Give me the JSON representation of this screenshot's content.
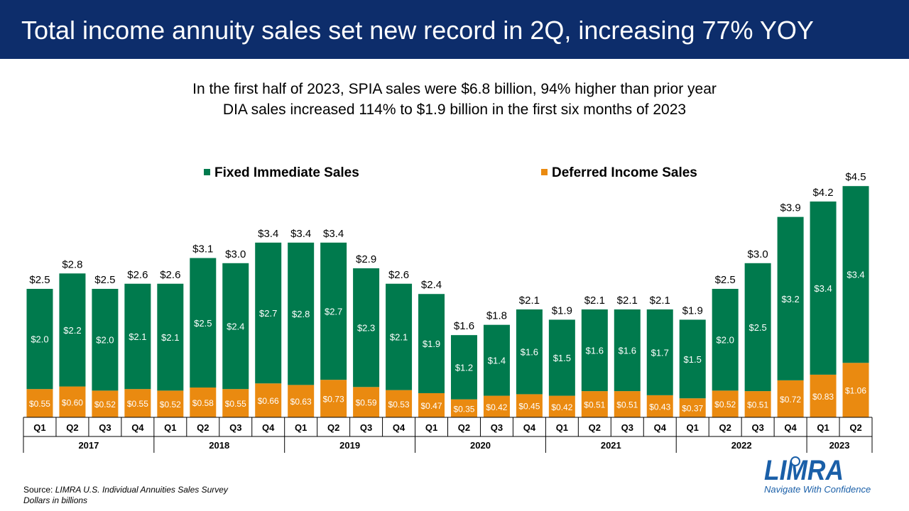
{
  "header": {
    "title": "Total income annuity sales set new record in 2Q, increasing 77% YOY",
    "subtitle_line1": "In the first half of 2023, SPIA sales were $6.8 billion, 94% higher than prior year",
    "subtitle_line2": "DIA sales increased 114% to $1.9 billion in the first six months of 2023"
  },
  "footer": {
    "source_prefix": "Source: ",
    "source_name": "LIMRA U.S. Individual Annuities Sales Survey",
    "units_note": "Dollars in billions"
  },
  "logo": {
    "wordmark": "LIMRA",
    "tagline": "Navigate With Confidence"
  },
  "colors": {
    "title_bar": "#0d2d6b",
    "fixed_immediate": "#007a4d",
    "deferred_income": "#ea8a10",
    "logo_blue": "#1a5fa8"
  },
  "chart_data": {
    "type": "bar",
    "stacked": true,
    "legend_position": "top",
    "ylim": [
      0,
      5
    ],
    "categories": [
      "Q1",
      "Q2",
      "Q3",
      "Q4",
      "Q1",
      "Q2",
      "Q3",
      "Q4",
      "Q1",
      "Q2",
      "Q3",
      "Q4",
      "Q1",
      "Q2",
      "Q3",
      "Q4",
      "Q1",
      "Q2",
      "Q3",
      "Q4",
      "Q1",
      "Q2",
      "Q3",
      "Q4",
      "Q1",
      "Q2"
    ],
    "groups": [
      {
        "label": "2017",
        "count": 4
      },
      {
        "label": "2018",
        "count": 4
      },
      {
        "label": "2019",
        "count": 4
      },
      {
        "label": "2020",
        "count": 4
      },
      {
        "label": "2021",
        "count": 4
      },
      {
        "label": "2022",
        "count": 4
      },
      {
        "label": "2023",
        "count": 2
      }
    ],
    "series": [
      {
        "name": "Deferred Income Sales",
        "values": [
          0.55,
          0.6,
          0.52,
          0.55,
          0.52,
          0.58,
          0.55,
          0.66,
          0.63,
          0.73,
          0.59,
          0.53,
          0.47,
          0.35,
          0.42,
          0.45,
          0.42,
          0.51,
          0.51,
          0.43,
          0.37,
          0.52,
          0.51,
          0.72,
          0.83,
          1.06
        ],
        "labels": [
          "$0.55",
          "$0.60",
          "$0.52",
          "$0.55",
          "$0.52",
          "$0.58",
          "$0.55",
          "$0.66",
          "$0.63",
          "$0.73",
          "$0.59",
          "$0.53",
          "$0.47",
          "$0.35",
          "$0.42",
          "$0.45",
          "$0.42",
          "$0.51",
          "$0.51",
          "$0.43",
          "$0.37",
          "$0.52",
          "$0.51",
          "$0.72",
          "$0.83",
          "$1.06"
        ]
      },
      {
        "name": "Fixed Immediate Sales",
        "values": [
          2.0,
          2.2,
          2.0,
          2.1,
          2.1,
          2.5,
          2.4,
          2.7,
          2.8,
          2.7,
          2.3,
          2.1,
          1.9,
          1.2,
          1.4,
          1.6,
          1.5,
          1.6,
          1.6,
          1.7,
          1.5,
          2.0,
          2.5,
          3.2,
          3.4,
          3.4
        ],
        "labels": [
          "$2.0",
          "$2.2",
          "$2.0",
          "$2.1",
          "$2.1",
          "$2.5",
          "$2.4",
          "$2.7",
          "$2.8",
          "$2.7",
          "$2.3",
          "$2.1",
          "$1.9",
          "$1.2",
          "$1.4",
          "$1.6",
          "$1.5",
          "$1.6",
          "$1.6",
          "$1.7",
          "$1.5",
          "$2.0",
          "$2.5",
          "$3.2",
          "$3.4",
          "$3.4"
        ]
      }
    ],
    "totals": [
      2.5,
      2.8,
      2.5,
      2.6,
      2.6,
      3.1,
      3.0,
      3.4,
      3.4,
      3.4,
      2.9,
      2.6,
      2.4,
      1.6,
      1.8,
      2.1,
      1.9,
      2.1,
      2.1,
      2.1,
      1.9,
      2.5,
      3.0,
      3.9,
      4.2,
      4.5
    ],
    "total_labels": [
      "$2.5",
      "$2.8",
      "$2.5",
      "$2.6",
      "$2.6",
      "$3.1",
      "$3.0",
      "$3.4",
      "$3.4",
      "$3.4",
      "$2.9",
      "$2.6",
      "$2.4",
      "$1.6",
      "$1.8",
      "$2.1",
      "$1.9",
      "$2.1",
      "$2.1",
      "$2.1",
      "$1.9",
      "$2.5",
      "$3.0",
      "$3.9",
      "$4.2",
      "$4.5"
    ]
  }
}
